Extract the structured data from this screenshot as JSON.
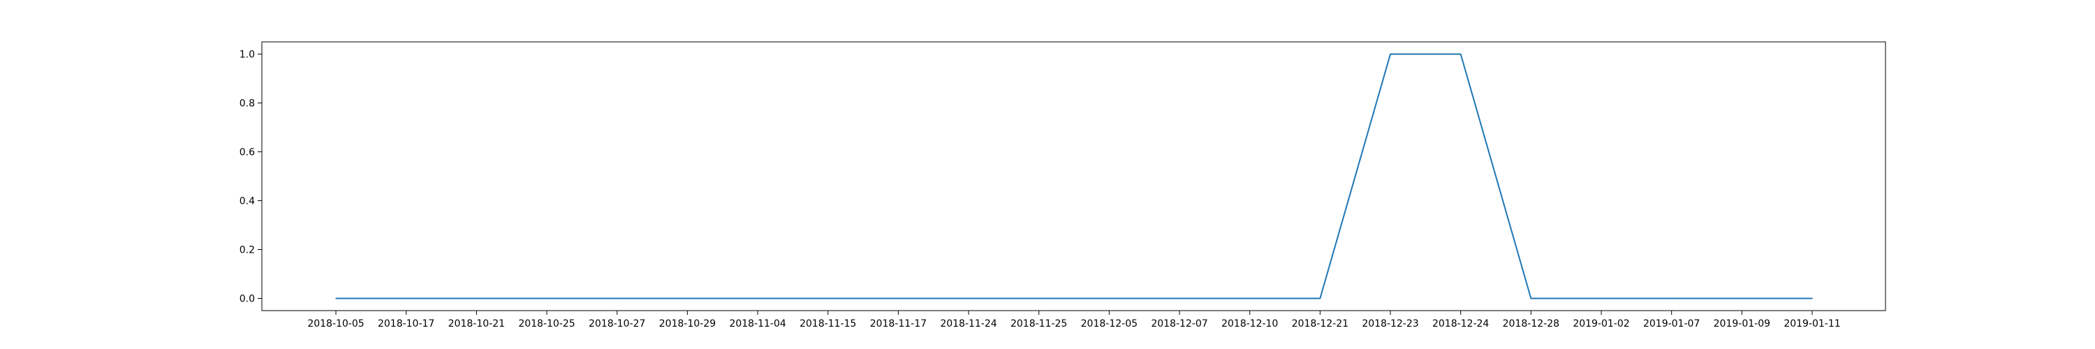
{
  "chart_data": {
    "type": "line",
    "title": "",
    "xlabel": "",
    "ylabel": "",
    "categories": [
      "2018-10-05",
      "2018-10-17",
      "2018-10-21",
      "2018-10-25",
      "2018-10-27",
      "2018-10-29",
      "2018-11-04",
      "2018-11-15",
      "2018-11-17",
      "2018-11-24",
      "2018-11-25",
      "2018-12-05",
      "2018-12-07",
      "2018-12-10",
      "2018-12-21",
      "2018-12-23",
      "2018-12-24",
      "2018-12-28",
      "2019-01-02",
      "2019-01-07",
      "2019-01-09",
      "2019-01-11"
    ],
    "series": [
      {
        "values": [
          0,
          0,
          0,
          0,
          0,
          0,
          0,
          0,
          0,
          0,
          0,
          0,
          0,
          0,
          0,
          1,
          1,
          0,
          0,
          0,
          0,
          0
        ]
      }
    ],
    "ylim": [
      -0.05,
      1.05
    ],
    "yticks": [
      0.0,
      0.2,
      0.4,
      0.6,
      0.8,
      1.0
    ],
    "ytick_labels": [
      "0.0",
      "0.2",
      "0.4",
      "0.6",
      "0.8",
      "1.0"
    ],
    "grid": false,
    "legend": "none",
    "colors": {
      "line": "#1f77b4",
      "axes": "#000000"
    }
  }
}
